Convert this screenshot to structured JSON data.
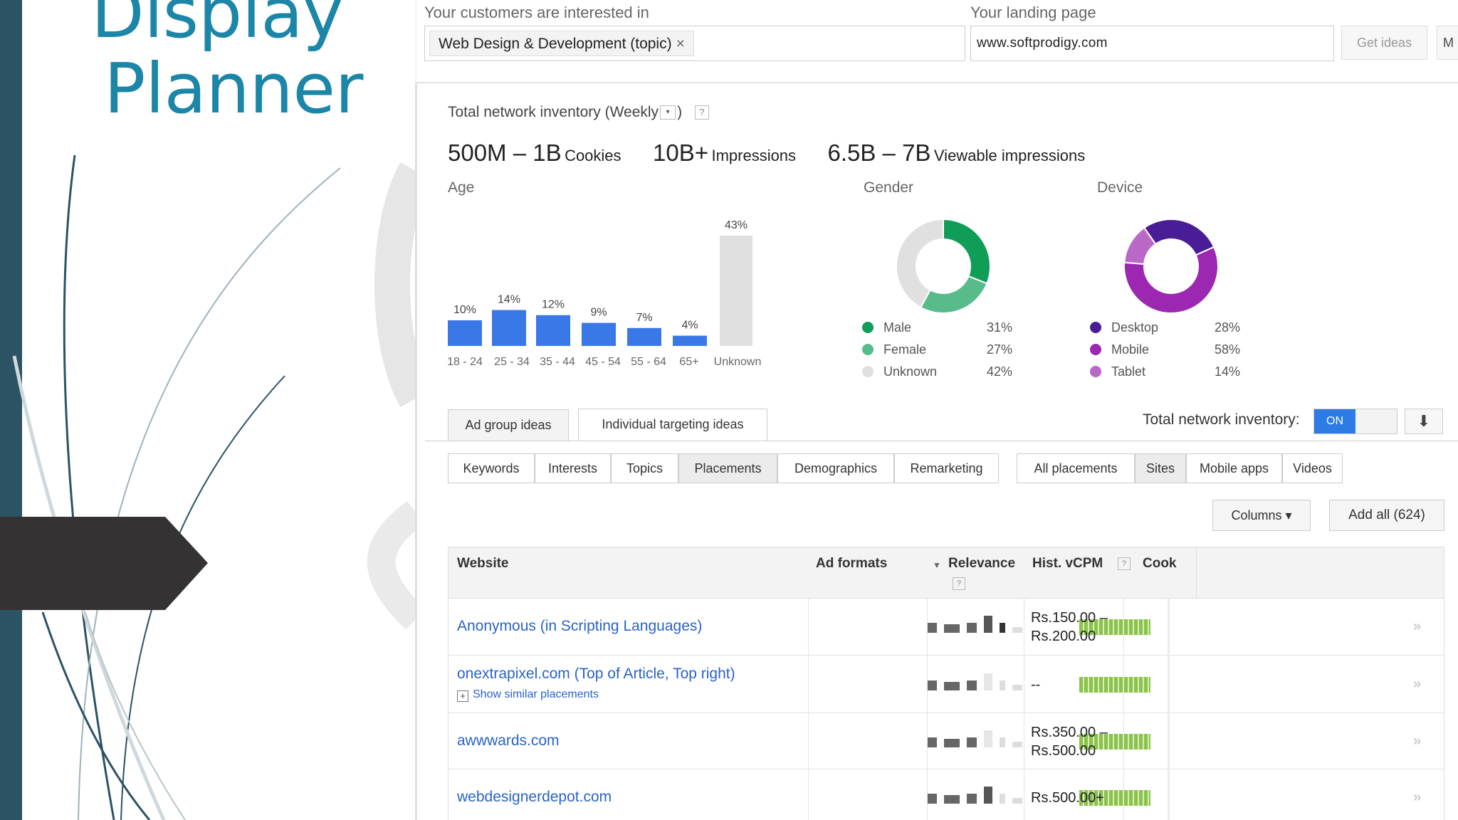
{
  "slide": {
    "title_line1": "Display",
    "title_line2": "Planner"
  },
  "planner": {
    "interest_label": "Your customers are interested in",
    "topic_chip": "Web Design & Development (topic)",
    "topic_chip_remove": "×",
    "landing_label": "Your landing page",
    "landing_value": "www.softprodigy.com",
    "get_ideas_label": "Get ideas",
    "next_button_partial": "M"
  },
  "inventory": {
    "title": "Total network inventory (Weekly",
    "title_dropdown_icon": "▾",
    "title_close": ")",
    "help": "?",
    "cookies_value": "500M – 1B",
    "cookies_label": "Cookies",
    "impressions_value": "10B+",
    "impressions_label": "Impressions",
    "viewable_value": "6.5B – 7B",
    "viewable_label": "Viewable impressions"
  },
  "chart_data": [
    {
      "type": "bar",
      "title": "Age",
      "categories": [
        "18 - 24",
        "25 - 34",
        "35 - 44",
        "45 - 54",
        "55 - 64",
        "65+",
        "Unknown"
      ],
      "values": [
        10,
        14,
        12,
        9,
        7,
        4,
        43
      ],
      "labels": [
        "10%",
        "14%",
        "12%",
        "9%",
        "7%",
        "4%",
        "43%"
      ],
      "colors": [
        "#3b78e7",
        "#3b78e7",
        "#3b78e7",
        "#3b78e7",
        "#3b78e7",
        "#3b78e7",
        "#e0e0e0"
      ]
    },
    {
      "type": "pie",
      "title": "Gender",
      "labels": [
        "Male",
        "Female",
        "Unknown"
      ],
      "values": [
        31,
        27,
        42
      ],
      "pct_labels": [
        "31%",
        "27%",
        "42%"
      ],
      "colors": [
        "#109d58",
        "#57bb8a",
        "#e0e0e0"
      ]
    },
    {
      "type": "pie",
      "title": "Device",
      "labels": [
        "Desktop",
        "Mobile",
        "Tablet"
      ],
      "values": [
        28,
        58,
        14
      ],
      "pct_labels": [
        "28%",
        "58%",
        "14%"
      ],
      "colors": [
        "#4a1d96",
        "#9c27b0",
        "#ba68c8"
      ]
    }
  ],
  "tabs": {
    "ad_group": "Ad group ideas",
    "individual": "Individual targeting ideas",
    "inventory_toggle_label": "Total network inventory:",
    "toggle_state": "ON",
    "download_icon": "⬇"
  },
  "segments": [
    "Keywords",
    "Interests",
    "Topics",
    "Placements",
    "Demographics",
    "Remarketing"
  ],
  "placement_filters": [
    "All placements",
    "Sites",
    "Mobile apps",
    "Videos"
  ],
  "actions": {
    "columns": "Columns ▾",
    "add_all": "Add all (624)"
  },
  "table": {
    "headers": {
      "website": "Website",
      "ad_formats": "Ad formats",
      "relevance": "Relevance",
      "relevance_help": "?",
      "hist_vcpm": "Hist. vCPM",
      "hist_help": "?",
      "cookies_partial": "Cook"
    },
    "rows": [
      {
        "site": "Anonymous (in Scripting Languages)",
        "cpm_line1": "Rs.150.00 –",
        "cpm_line2": "Rs.200.00"
      },
      {
        "site": "onextrapixel.com (Top of Article, Top right)",
        "similar": "Show similar placements",
        "cpm_line1": "--",
        "cpm_line2": ""
      },
      {
        "site": "awwwards.com",
        "cpm_line1": "Rs.350.00 –",
        "cpm_line2": "Rs.500.00"
      },
      {
        "site": "webdesignerdepot.com",
        "cpm_line1": "Rs.500.00+",
        "cpm_line2": ""
      }
    ],
    "row_chevron": "»",
    "plus_icon": "+"
  }
}
